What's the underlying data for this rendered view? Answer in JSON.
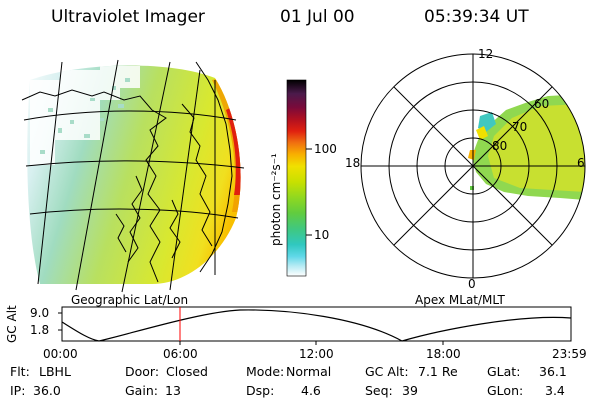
{
  "header": {
    "title": "Ultraviolet Imager",
    "date": "01 Jul 00",
    "time": "05:39:34 UT"
  },
  "colorbar": {
    "unit_label": "photon cm⁻²s⁻¹",
    "ticks": [
      "100",
      "10"
    ],
    "scale": "log",
    "colors": [
      "#000000",
      "#4b1a4b",
      "#7a0a3a",
      "#b01020",
      "#e02010",
      "#f07010",
      "#f8b000",
      "#f0e000",
      "#c8e000",
      "#90d820",
      "#60cc40",
      "#40c880",
      "#30c8c0",
      "#60d8e8",
      "#b8ecf4",
      "#ffffff"
    ]
  },
  "left_map": {
    "label": "Geographic Lat/Lon"
  },
  "polar_plot": {
    "label": "Apex MLat/MLT",
    "mlt_labels": [
      "12",
      "18",
      "6",
      "0"
    ],
    "lat_labels": [
      "60",
      "70",
      "80"
    ]
  },
  "altitude_plot": {
    "ylabel": "GC Alt",
    "yticks": [
      "9.0",
      "1.8"
    ],
    "xticks": [
      "00:00",
      "06:00",
      "12:00",
      "18:00",
      "23:59"
    ],
    "marker_color": "#ff0000"
  },
  "info": {
    "row1": [
      {
        "label": "Flt:",
        "value": "LBHL"
      },
      {
        "label": "Door:",
        "value": "Closed"
      },
      {
        "label": "Mode:",
        "value": "Normal"
      },
      {
        "label": "GC Alt:",
        "value": "7.1 Re"
      },
      {
        "label": "GLat:",
        "value": "36.1"
      }
    ],
    "row2": [
      {
        "label": "IP:",
        "value": "36.0"
      },
      {
        "label": "Gain:",
        "value": "13"
      },
      {
        "label": "Dsp:",
        "value": "4.6"
      },
      {
        "label": "Seq:",
        "value": "39"
      },
      {
        "label": "GLon:",
        "value": "3.4"
      }
    ]
  }
}
